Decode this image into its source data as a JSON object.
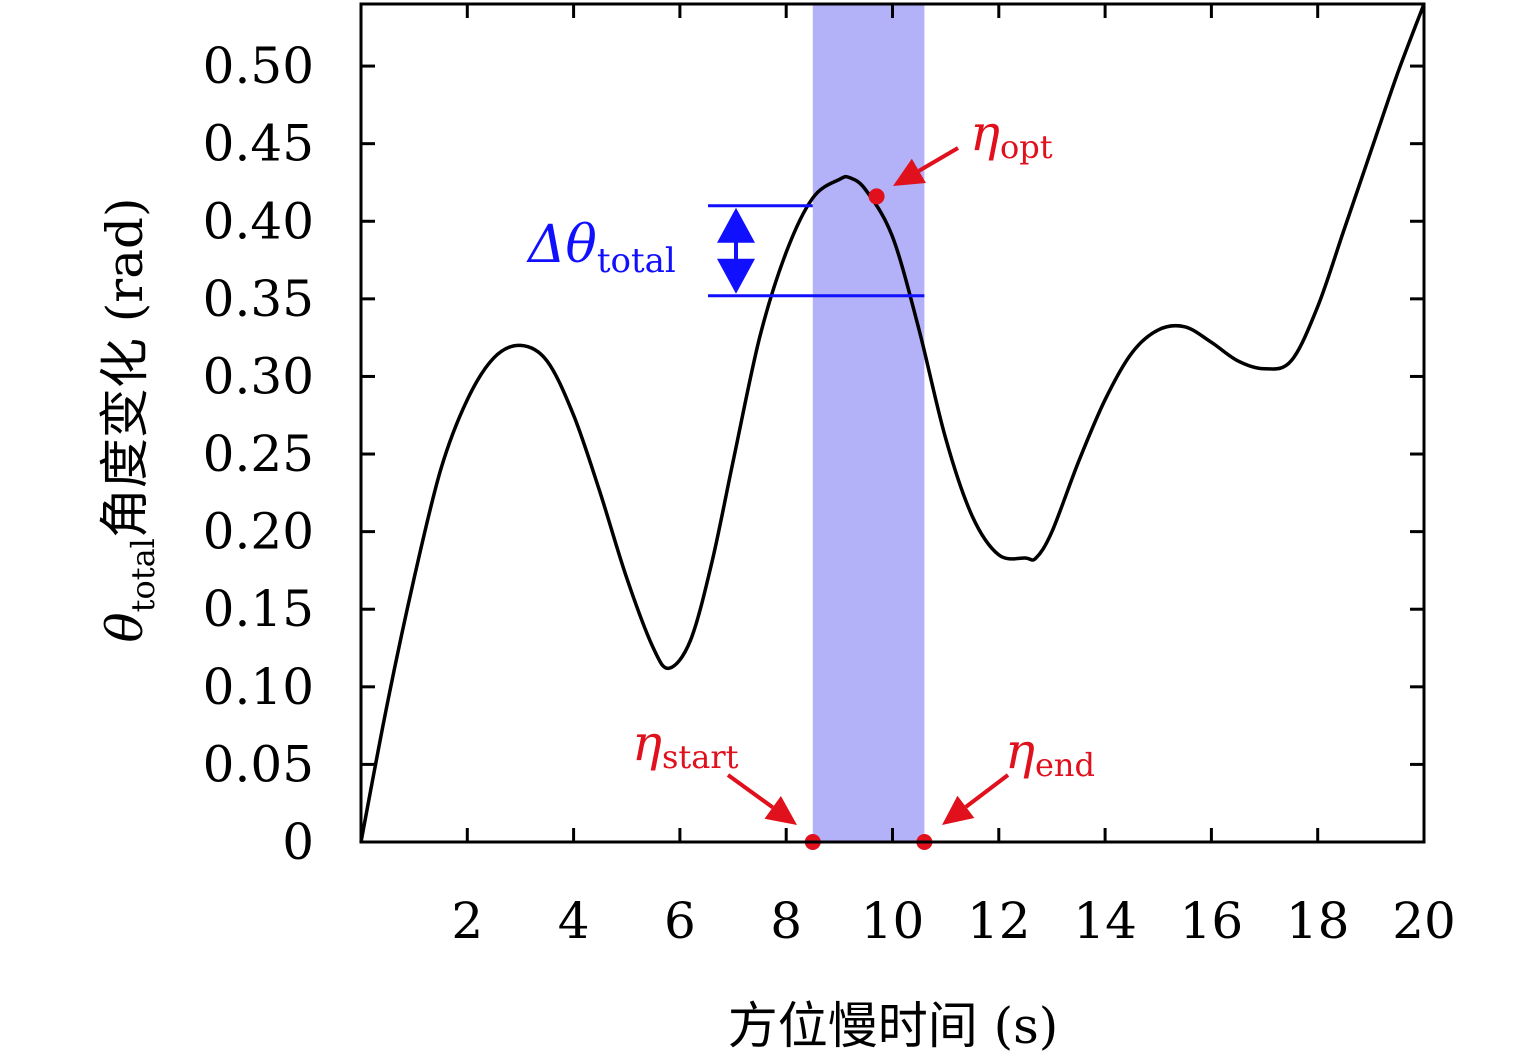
{
  "chart_data": {
    "type": "line",
    "title": "",
    "xlabel": "方位慢时间 (s)",
    "ylabel_symbol": "θ",
    "ylabel_subscript": "total",
    "ylabel_text": "角度变化 (rad)",
    "xlim": [
      0,
      20
    ],
    "ylim": [
      0,
      0.54
    ],
    "x_ticks": [
      2,
      4,
      6,
      8,
      10,
      12,
      14,
      16,
      18,
      20
    ],
    "x_tick_labels": [
      "2",
      "4",
      "6",
      "8",
      "10",
      "12",
      "14",
      "16",
      "18",
      "20"
    ],
    "y_ticks": [
      0,
      0.05,
      0.1,
      0.15,
      0.2,
      0.25,
      0.3,
      0.35,
      0.4,
      0.45,
      0.5
    ],
    "y_tick_labels": [
      "0",
      "0.05",
      "0.10",
      "0.15",
      "0.20",
      "0.25",
      "0.30",
      "0.35",
      "0.40",
      "0.45",
      "0.50"
    ],
    "grid": false,
    "series": [
      {
        "color": "#000000",
        "x": [
          0,
          0.5,
          1,
          1.5,
          2,
          2.5,
          3,
          3.5,
          4,
          4.5,
          5,
          5.5,
          5.8,
          6.2,
          6.6,
          7,
          7.5,
          8,
          8.5,
          9,
          9.2,
          9.5,
          10,
          10.5,
          11,
          11.5,
          12,
          12.5,
          12.7,
          13,
          13.5,
          14,
          14.5,
          15,
          15.5,
          16,
          16.5,
          17,
          17.5,
          18,
          18.5,
          19,
          19.5,
          20
        ],
        "y": [
          0,
          0.09,
          0.17,
          0.24,
          0.285,
          0.312,
          0.32,
          0.31,
          0.275,
          0.225,
          0.17,
          0.125,
          0.112,
          0.13,
          0.18,
          0.245,
          0.325,
          0.38,
          0.415,
          0.427,
          0.428,
          0.42,
          0.39,
          0.33,
          0.26,
          0.21,
          0.185,
          0.183,
          0.183,
          0.2,
          0.245,
          0.285,
          0.315,
          0.33,
          0.332,
          0.322,
          0.31,
          0.305,
          0.31,
          0.345,
          0.395,
          0.445,
          0.495,
          0.54
        ]
      }
    ],
    "highlight_band": {
      "x_start": 8.5,
      "x_end": 10.6,
      "color": "#b3b1f7"
    },
    "delta_theta": {
      "y_top": 0.41,
      "y_bottom": 0.352,
      "line_x_end_top": 8.5,
      "line_x_end_bottom": 10.6,
      "color": "#1010ff"
    },
    "annotations": [
      {
        "symbol": "η",
        "subscript": "opt",
        "point_x": 9.7,
        "point_y": 0.416,
        "color": "#e0101c"
      },
      {
        "symbol": "η",
        "subscript": "start",
        "point_x": 8.5,
        "point_y": 0.0,
        "color": "#e0101c"
      },
      {
        "symbol": "η",
        "subscript": "end",
        "point_x": 10.6,
        "point_y": 0.0,
        "color": "#e0101c"
      }
    ],
    "delta_label_symbol": "Δθ",
    "delta_label_subscript": "total"
  }
}
